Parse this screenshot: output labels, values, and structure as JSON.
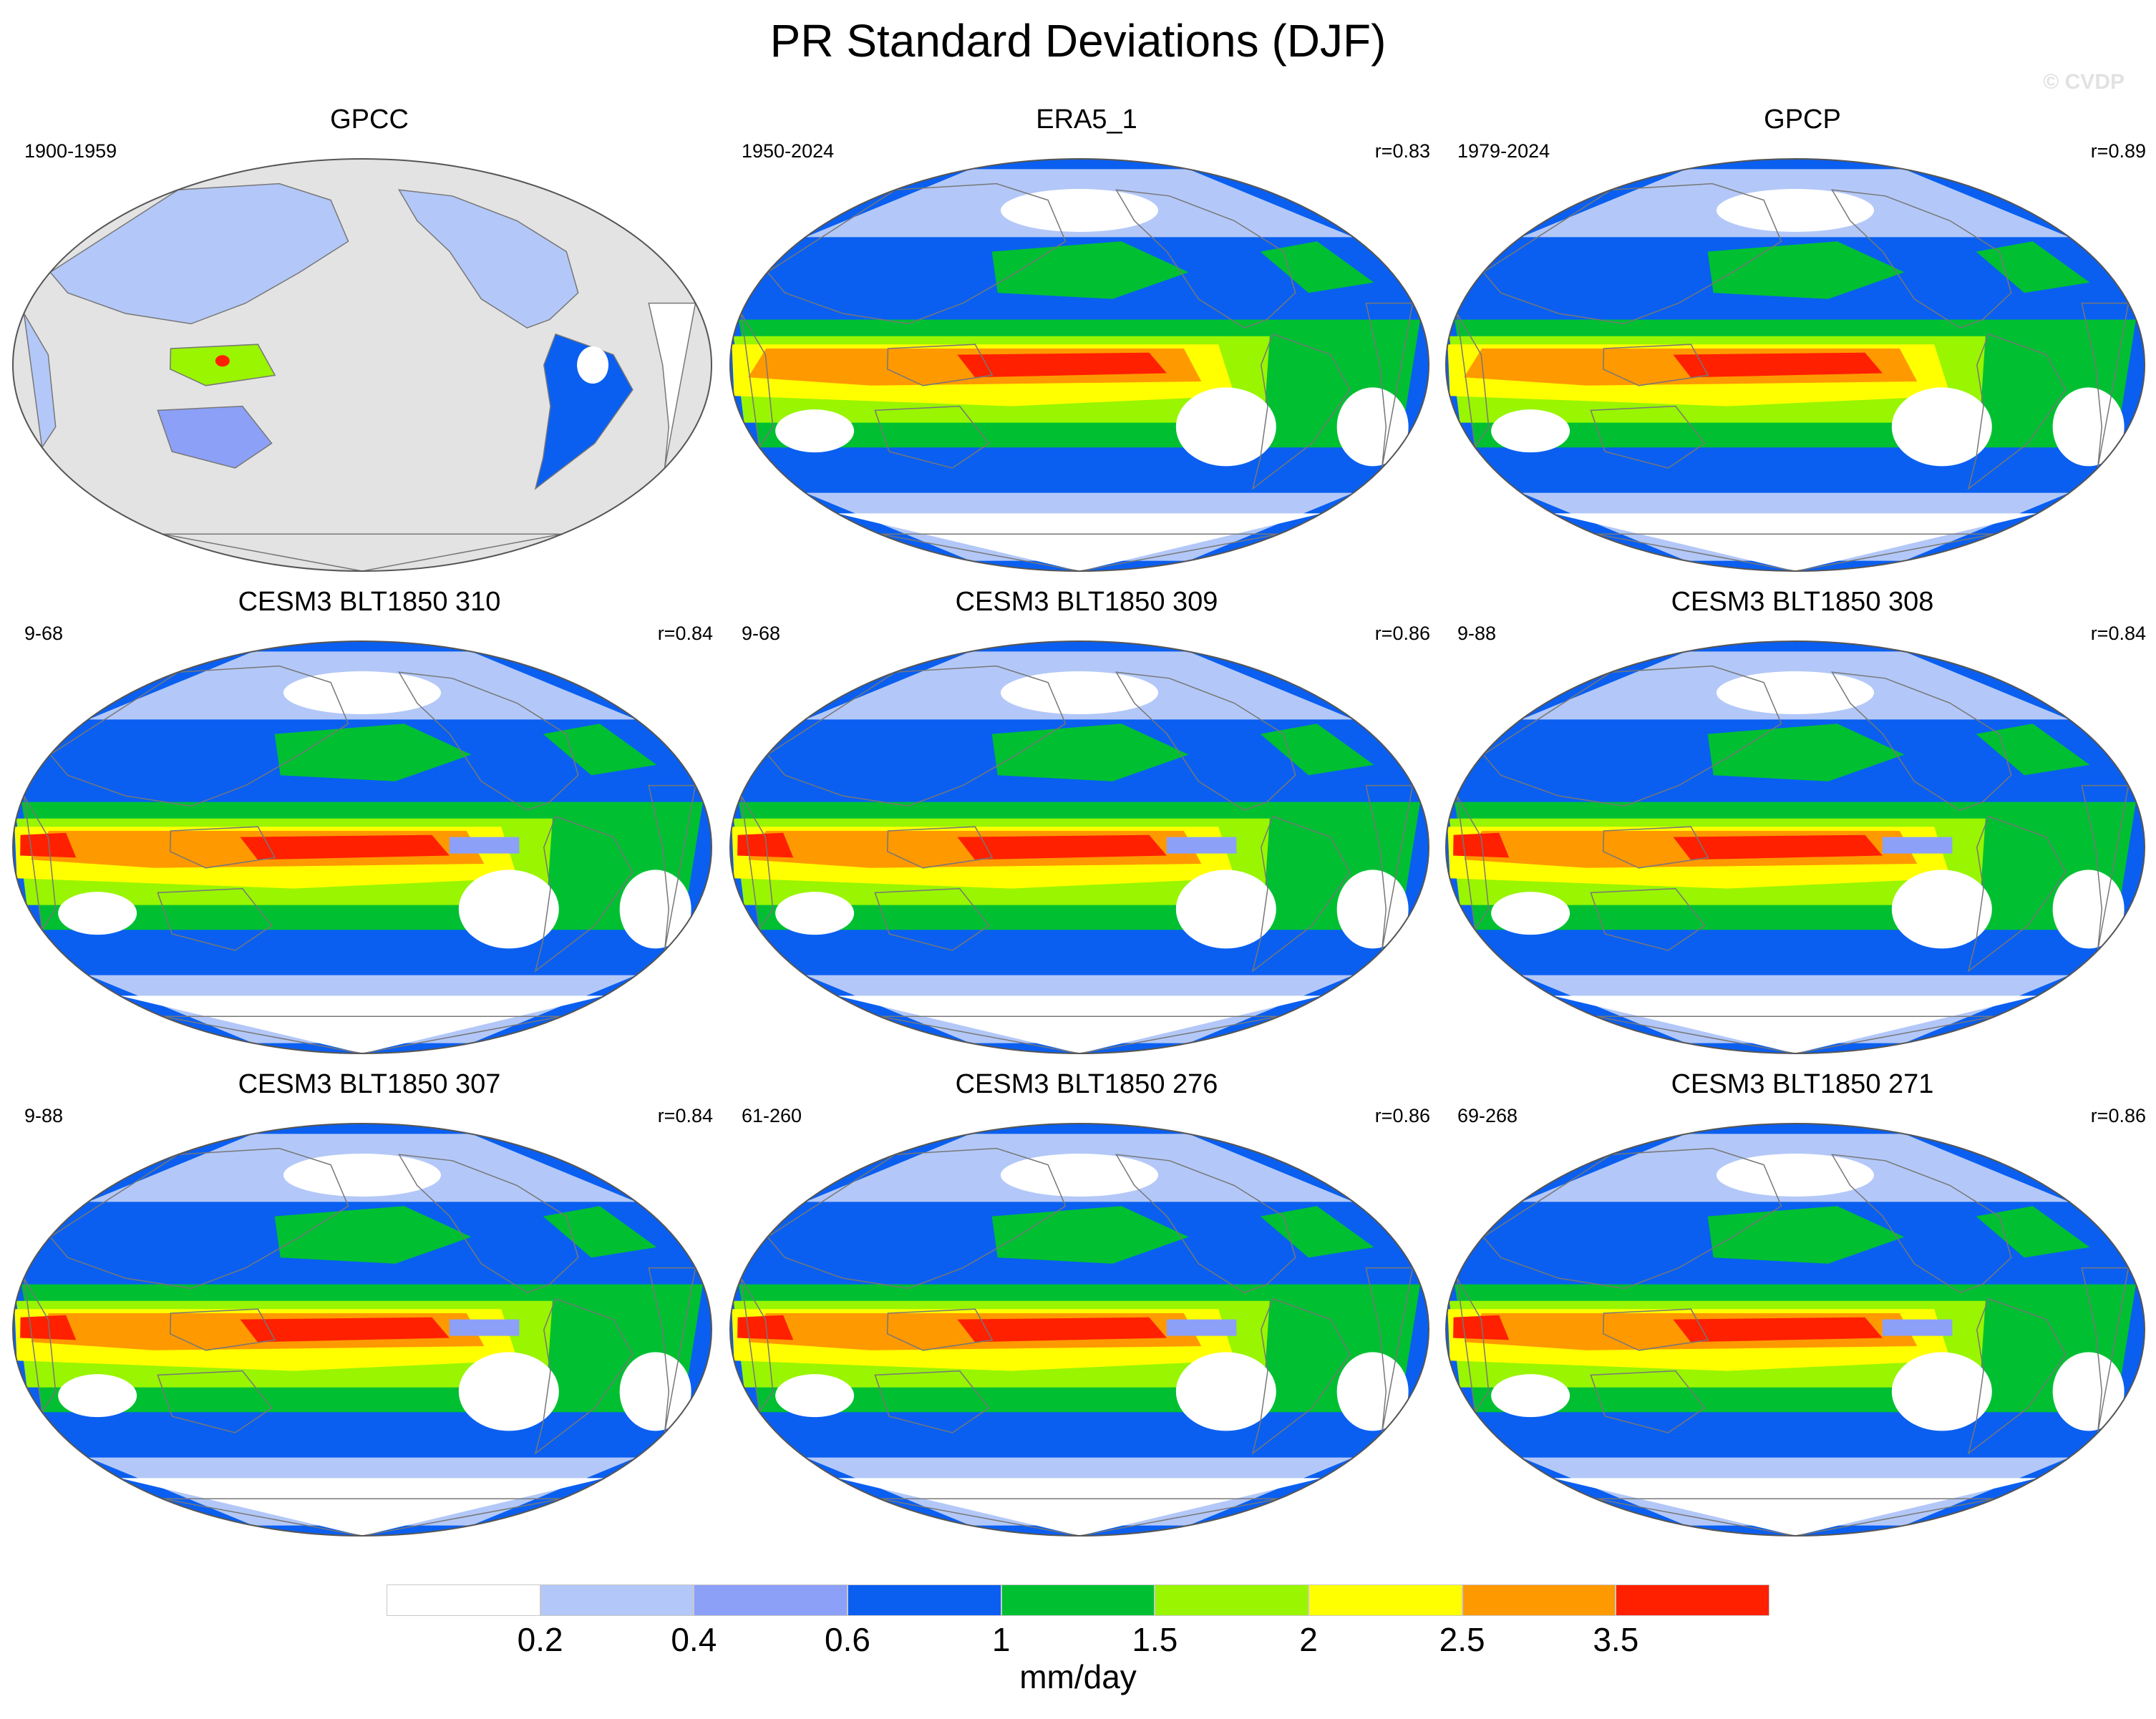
{
  "figure": {
    "title": "PR Standard Deviations (DJF)",
    "watermark": "© CVDP"
  },
  "colorbar": {
    "colors": [
      "#ffffff",
      "#b3c8f8",
      "#8ca0f8",
      "#0a5ff0",
      "#00c032",
      "#99f500",
      "#ffff00",
      "#ff9900",
      "#ff2000"
    ],
    "ticks": [
      "0.2",
      "0.4",
      "0.6",
      "1",
      "1.5",
      "2",
      "2.5",
      "3.5"
    ],
    "units": "mm/day"
  },
  "panels": [
    {
      "title": "GPCC",
      "period": "1900-1959",
      "corr": "",
      "type": "land"
    },
    {
      "title": "ERA5_1",
      "period": "1950-2024",
      "corr": "r=0.83",
      "type": "obs"
    },
    {
      "title": "GPCP",
      "period": "1979-2024",
      "corr": "r=0.89",
      "type": "obs"
    },
    {
      "title": "CESM3 BLT1850 310",
      "period": "9-68",
      "corr": "r=0.84",
      "type": "model"
    },
    {
      "title": "CESM3 BLT1850 309",
      "period": "9-68",
      "corr": "r=0.86",
      "type": "model"
    },
    {
      "title": "CESM3 BLT1850 308",
      "period": "9-88",
      "corr": "r=0.84",
      "type": "model"
    },
    {
      "title": "CESM3 BLT1850 307",
      "period": "9-88",
      "corr": "r=0.84",
      "type": "model"
    },
    {
      "title": "CESM3 BLT1850 276",
      "period": "61-260",
      "corr": "r=0.86",
      "type": "model"
    },
    {
      "title": "CESM3 BLT1850 271",
      "period": "69-268",
      "corr": "r=0.86",
      "type": "model"
    }
  ]
}
